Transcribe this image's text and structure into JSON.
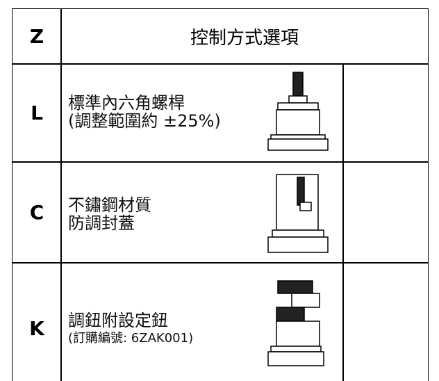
{
  "header": {
    "code": "Z",
    "title": "控制方式選項"
  },
  "rows": [
    {
      "code": "L",
      "lines": [
        "標準內六角螺桿",
        "(調整範圍約 ±25%)"
      ]
    },
    {
      "code": "C",
      "lines": [
        "不鏽鋼材質",
        "防調封蓋"
      ]
    },
    {
      "code": "K",
      "lines": [
        "調鈕附設定鈕",
        "(訂購編號: 6ZAK001)"
      ]
    }
  ]
}
